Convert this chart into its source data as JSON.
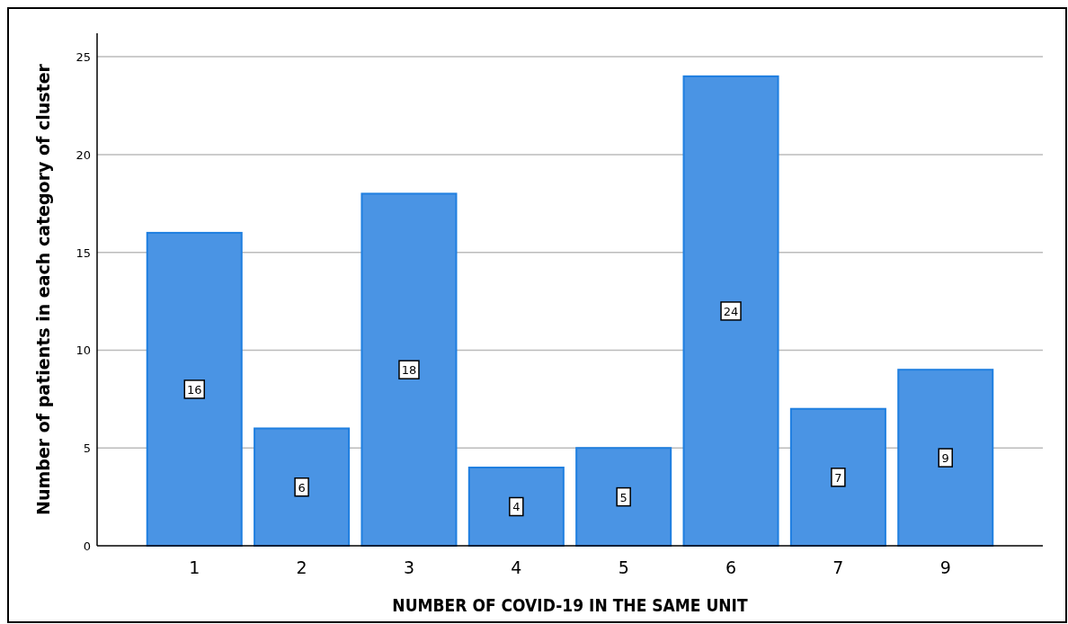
{
  "chart_data": {
    "type": "bar",
    "xlabel": "NUMBER OF COVID-19 IN THE SAME UNIT",
    "ylabel": "Number of patients in each category of cluster",
    "categories": [
      "1",
      "2",
      "3",
      "4",
      "5",
      "6",
      "7",
      "9"
    ],
    "values": [
      16,
      6,
      18,
      4,
      5,
      24,
      7,
      9
    ],
    "color": "#4a94e4",
    "ylim": [
      0,
      26.2
    ],
    "yticks": [
      0,
      5,
      10,
      15,
      20,
      25
    ],
    "grid": "y",
    "data_labels": true
  }
}
